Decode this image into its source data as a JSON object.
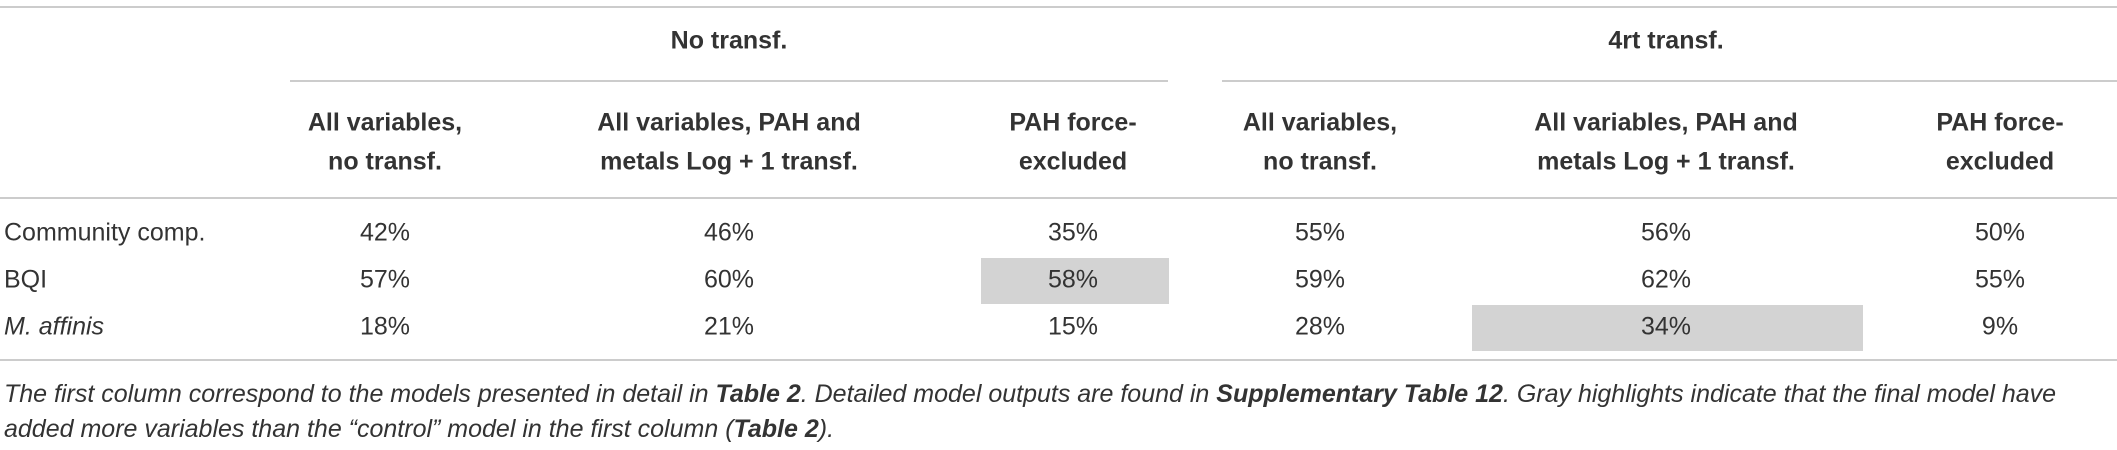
{
  "header": {
    "groups": [
      "No transf.",
      "4rt transf."
    ],
    "columns": [
      [
        "All variables,",
        "no transf."
      ],
      [
        "All variables, PAH and",
        "metals Log + 1 transf."
      ],
      [
        "PAH force-",
        "excluded"
      ],
      [
        "All variables,",
        "no transf."
      ],
      [
        "All variables, PAH and",
        "metals Log + 1 transf."
      ],
      [
        "PAH force-",
        "excluded"
      ]
    ]
  },
  "table": {
    "highlight_color": "#d3d3d3",
    "highlighted_cells": [
      [
        1,
        2
      ],
      [
        2,
        4
      ]
    ],
    "rows": [
      {
        "label": "Community comp.",
        "label_italic": false,
        "cells": [
          "42%",
          "46%",
          "35%",
          "55%",
          "56%",
          "50%"
        ]
      },
      {
        "label": "BQI",
        "label_italic": false,
        "cells": [
          "57%",
          "60%",
          "58%",
          "59%",
          "62%",
          "55%"
        ]
      },
      {
        "label": "M. affinis",
        "label_italic": true,
        "cells": [
          "18%",
          "21%",
          "15%",
          "28%",
          "34%",
          "9%"
        ]
      }
    ]
  },
  "caption": [
    {
      "text": "The first column correspond to the models presented in detail in ",
      "bold": false
    },
    {
      "text": "Table 2",
      "bold": true
    },
    {
      "text": ". Detailed model outputs are found in ",
      "bold": false
    },
    {
      "text": "Supplementary Table 12",
      "bold": true
    },
    {
      "text": ". Gray highlights indicate that the final model have added more variables than the “control” model in the first column (",
      "bold": false
    },
    {
      "text": "Table 2",
      "bold": true
    },
    {
      "text": ").",
      "bold": false
    }
  ]
}
